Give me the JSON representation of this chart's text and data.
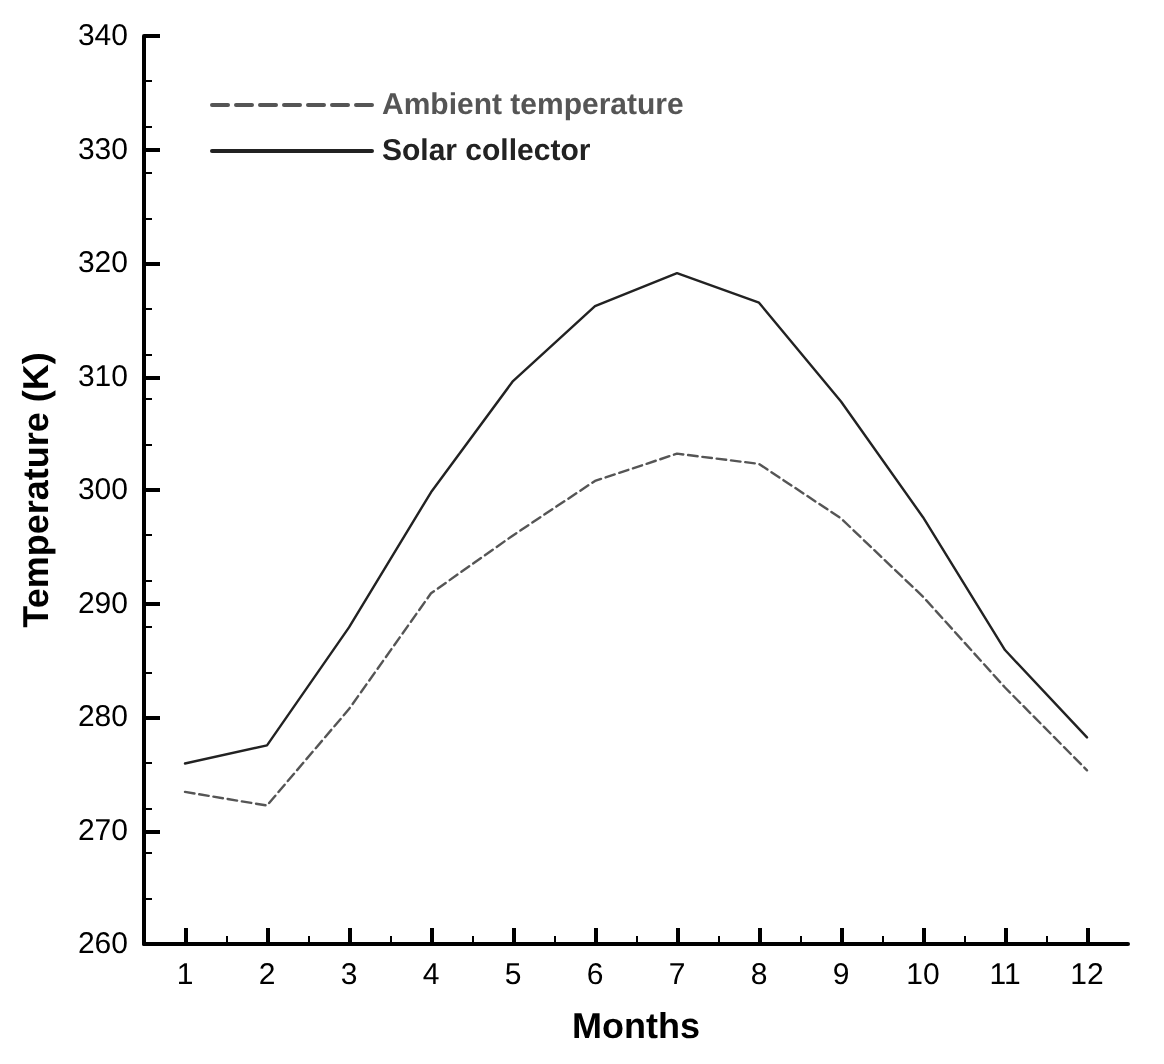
{
  "chart_data": {
    "type": "line",
    "xlabel": "Months",
    "ylabel": "Temperature (K)",
    "x": [
      1,
      2,
      3,
      4,
      5,
      6,
      7,
      8,
      9,
      10,
      11,
      12
    ],
    "series": [
      {
        "name": "Ambient temperature",
        "color": "#555555",
        "line_style": "dashed",
        "values": [
          273.4,
          272.2,
          280.7,
          290.9,
          296.0,
          300.8,
          303.2,
          302.3,
          297.5,
          290.6,
          282.6,
          275.3
        ]
      },
      {
        "name": "Solar collector",
        "color": "#222222",
        "line_style": "solid",
        "values": [
          275.9,
          277.5,
          287.9,
          299.8,
          309.6,
          316.2,
          319.1,
          316.5,
          307.8,
          297.6,
          285.9,
          278.2
        ]
      }
    ],
    "xlim": [
      0.5,
      12.5
    ],
    "xticks": [
      1,
      2,
      3,
      4,
      5,
      6,
      7,
      8,
      9,
      10,
      11,
      12
    ],
    "ylim": [
      260,
      340
    ],
    "yticks": [
      260,
      270,
      280,
      290,
      300,
      310,
      320,
      330,
      340
    ],
    "grid": false,
    "legend": "top left",
    "marker": "none"
  }
}
